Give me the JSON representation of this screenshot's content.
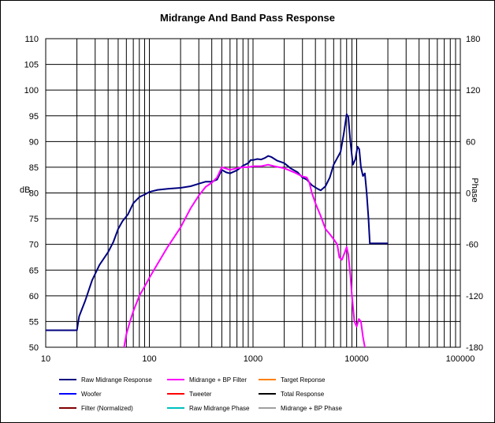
{
  "chart_data": {
    "type": "line",
    "title": "Midrange  And Band Pass Response",
    "xscale": "log",
    "xlim": [
      10,
      100000
    ],
    "ylim": [
      50,
      110
    ],
    "y2lim": [
      -180,
      180
    ],
    "xlabel": "",
    "ylabel": "dB",
    "y2label": "Phase",
    "x_ticks": [
      10,
      100,
      1000,
      10000,
      100000
    ],
    "x_tick_labels": [
      "10",
      "100",
      "1000",
      "10000",
      "100000"
    ],
    "y_ticks": [
      50,
      55,
      60,
      65,
      70,
      75,
      80,
      85,
      90,
      95,
      100,
      105,
      110
    ],
    "y_tick_labels": [
      "50",
      "55",
      "60",
      "65",
      "70",
      "75",
      "80",
      "85",
      "90",
      "95",
      "100",
      "105",
      "110"
    ],
    "y2_ticks": [
      -180,
      -120,
      -60,
      0,
      60,
      120,
      180
    ],
    "y2_tick_labels": [
      "-180",
      "-120",
      "-60",
      "0",
      "60",
      "120",
      "180"
    ],
    "grid": true,
    "legend_position": "bottom",
    "legend": [
      {
        "name": "Raw Midrange Response",
        "color": "#000080"
      },
      {
        "name": "Midrange + BP Filter",
        "color": "#ff00ff"
      },
      {
        "name": "Target Reponse",
        "color": "#ff8000"
      },
      {
        "name": "Woofer",
        "color": "#0000ff"
      },
      {
        "name": "Tweeter",
        "color": "#ff0000"
      },
      {
        "name": "Total Response",
        "color": "#000000"
      },
      {
        "name": "Filter (Normalized)",
        "color": "#800000"
      },
      {
        "name": "Raw Midrange Phase",
        "color": "#00c0c0"
      },
      {
        "name": "Midrange + BP Phase",
        "color": "#a0a0a0"
      }
    ],
    "series": [
      {
        "name": "Raw Midrange Response",
        "color": "#000080",
        "points": [
          [
            10,
            53.3
          ],
          [
            20,
            53.3
          ],
          [
            21,
            56
          ],
          [
            24,
            59
          ],
          [
            28,
            63
          ],
          [
            33,
            66
          ],
          [
            40,
            68.5
          ],
          [
            45,
            70.5
          ],
          [
            50,
            73
          ],
          [
            55,
            74.5
          ],
          [
            62,
            75.8
          ],
          [
            70,
            78
          ],
          [
            80,
            79.2
          ],
          [
            90,
            79.7
          ],
          [
            100,
            80.2
          ],
          [
            120,
            80.6
          ],
          [
            150,
            80.8
          ],
          [
            200,
            81
          ],
          [
            250,
            81.3
          ],
          [
            300,
            81.8
          ],
          [
            350,
            82.2
          ],
          [
            400,
            82.2
          ],
          [
            450,
            82.6
          ],
          [
            500,
            84.5
          ],
          [
            550,
            84
          ],
          [
            600,
            83.8
          ],
          [
            700,
            84.4
          ],
          [
            800,
            85.3
          ],
          [
            900,
            85.8
          ],
          [
            950,
            86.4
          ],
          [
            1000,
            86.4
          ],
          [
            1100,
            86.6
          ],
          [
            1200,
            86.5
          ],
          [
            1300,
            86.8
          ],
          [
            1400,
            87.2
          ],
          [
            1500,
            87
          ],
          [
            1700,
            86.3
          ],
          [
            2000,
            85.8
          ],
          [
            2300,
            84.8
          ],
          [
            2700,
            84
          ],
          [
            3000,
            83
          ],
          [
            3300,
            82.6
          ],
          [
            3700,
            81.5
          ],
          [
            4200,
            80.8
          ],
          [
            4500,
            80.5
          ],
          [
            5000,
            81.3
          ],
          [
            5500,
            83
          ],
          [
            6000,
            85.5
          ],
          [
            6500,
            86.8
          ],
          [
            7000,
            88
          ],
          [
            7500,
            91.5
          ],
          [
            8000,
            95.3
          ],
          [
            8300,
            94.8
          ],
          [
            8700,
            90
          ],
          [
            9200,
            85.5
          ],
          [
            9700,
            86.5
          ],
          [
            10200,
            89
          ],
          [
            10600,
            88.5
          ],
          [
            11000,
            85
          ],
          [
            11500,
            83.3
          ],
          [
            12000,
            83.8
          ],
          [
            12500,
            80
          ],
          [
            13000,
            75
          ],
          [
            13400,
            70.2
          ],
          [
            20000,
            70.2
          ]
        ]
      },
      {
        "name": "Midrange + BP Filter",
        "color": "#ff00ff",
        "points": [
          [
            57,
            50
          ],
          [
            60,
            52.5
          ],
          [
            65,
            55
          ],
          [
            70,
            57
          ],
          [
            80,
            60
          ],
          [
            90,
            61.8
          ],
          [
            100,
            63.5
          ],
          [
            120,
            66.2
          ],
          [
            150,
            69.5
          ],
          [
            200,
            73.3
          ],
          [
            250,
            77
          ],
          [
            300,
            79.5
          ],
          [
            350,
            81.2
          ],
          [
            400,
            82
          ],
          [
            450,
            83
          ],
          [
            500,
            85
          ],
          [
            600,
            84.5
          ],
          [
            700,
            84.8
          ],
          [
            800,
            85
          ],
          [
            900,
            85
          ],
          [
            1000,
            85.2
          ],
          [
            1200,
            85.2
          ],
          [
            1400,
            85.5
          ],
          [
            1600,
            85.2
          ],
          [
            2000,
            84.8
          ],
          [
            2500,
            84
          ],
          [
            3000,
            83.2
          ],
          [
            3300,
            83
          ],
          [
            3500,
            82
          ],
          [
            3700,
            80
          ],
          [
            4000,
            78
          ],
          [
            4500,
            75.5
          ],
          [
            5000,
            73
          ],
          [
            5500,
            72
          ],
          [
            6000,
            71
          ],
          [
            6500,
            70
          ],
          [
            6800,
            67.5
          ],
          [
            7200,
            67
          ],
          [
            7700,
            68.5
          ],
          [
            8000,
            69.5
          ],
          [
            8300,
            68
          ],
          [
            8700,
            64
          ],
          [
            9000,
            60
          ],
          [
            9500,
            55
          ],
          [
            10000,
            54
          ],
          [
            10500,
            55.5
          ],
          [
            11000,
            55
          ],
          [
            11500,
            52
          ],
          [
            12000,
            50
          ]
        ]
      }
    ]
  }
}
